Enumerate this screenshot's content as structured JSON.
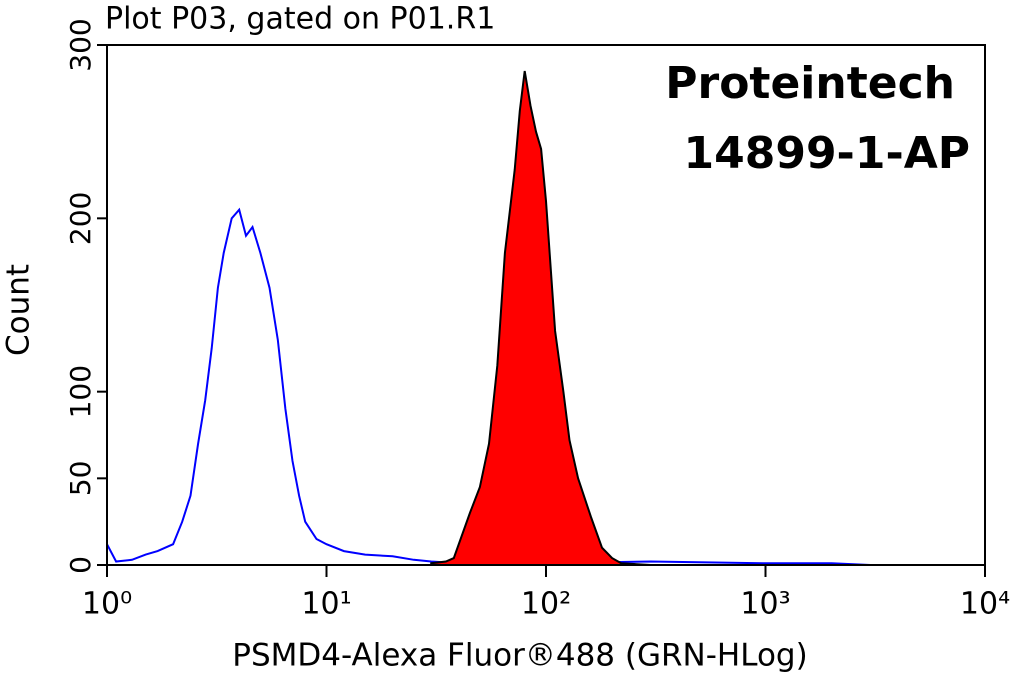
{
  "chart_data": {
    "type": "histogram-overlay",
    "title": "Plot P03, gated on P01.R1",
    "annotations": [
      "Proteintech",
      "14899-1-AP"
    ],
    "xlabel": "PSMD4-Alexa Fluor®488 (GRN-HLog)",
    "ylabel": "Count",
    "xscale": "log",
    "xlim": [
      1,
      10000
    ],
    "xticks": [
      {
        "value": 1,
        "label": "10⁰"
      },
      {
        "value": 10,
        "label": "10¹"
      },
      {
        "value": 100,
        "label": "10²"
      },
      {
        "value": 1000,
        "label": "10³"
      },
      {
        "value": 10000,
        "label": "10⁴"
      }
    ],
    "ylim": [
      0,
      300
    ],
    "yticks": [
      0,
      50,
      100,
      200,
      300
    ],
    "series": [
      {
        "color": "#0000ff",
        "filled": false,
        "x": [
          1,
          1.1,
          1.3,
          1.5,
          1.7,
          2,
          2.2,
          2.4,
          2.6,
          2.8,
          3,
          3.2,
          3.4,
          3.7,
          4,
          4.3,
          4.6,
          5,
          5.5,
          6,
          6.5,
          7,
          7.5,
          8,
          9,
          10,
          12,
          15,
          20,
          25,
          30,
          40,
          60,
          100,
          300,
          1000,
          2000,
          3000
        ],
        "values": [
          12,
          2,
          3,
          6,
          8,
          12,
          25,
          40,
          70,
          95,
          125,
          160,
          180,
          200,
          205,
          190,
          195,
          180,
          160,
          130,
          90,
          60,
          40,
          25,
          15,
          12,
          8,
          6,
          5,
          3,
          2,
          1,
          0,
          1,
          2,
          1,
          1,
          0
        ]
      },
      {
        "color": "#ff0000",
        "filled": true,
        "x": [
          30,
          35,
          38,
          45,
          50,
          55,
          60,
          65,
          72,
          76,
          80,
          85,
          90,
          95,
          100,
          110,
          120,
          128,
          140,
          160,
          180,
          200,
          220,
          300
        ],
        "values": [
          1,
          2,
          4,
          30,
          45,
          70,
          115,
          180,
          228,
          262,
          285,
          265,
          250,
          240,
          210,
          135,
          100,
          72,
          50,
          28,
          10,
          4,
          1,
          0
        ]
      }
    ]
  }
}
